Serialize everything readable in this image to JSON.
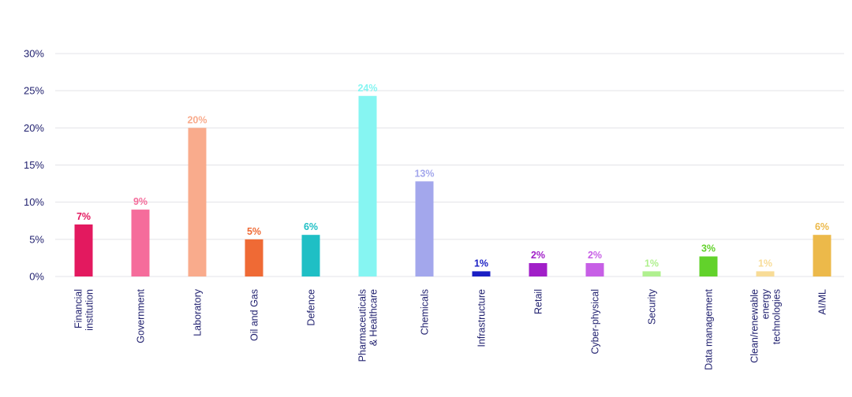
{
  "chart_data": {
    "type": "bar",
    "title": "",
    "xlabel": "",
    "ylabel": "",
    "ylim": [
      0,
      30
    ],
    "yticks": [
      0,
      5,
      10,
      15,
      20,
      25,
      30
    ],
    "ytick_labels": [
      "0%",
      "5%",
      "10%",
      "15%",
      "20%",
      "25%",
      "30%"
    ],
    "grid": true,
    "legend": "none",
    "categories": [
      {
        "lines": [
          "Financial",
          "institution"
        ],
        "value": 7,
        "label": "7%",
        "color": "#e3195f"
      },
      {
        "lines": [
          "Government"
        ],
        "value": 9,
        "label": "9%",
        "color": "#f56c9b"
      },
      {
        "lines": [
          "Laboratory"
        ],
        "value": 20,
        "label": "20%",
        "color": "#f9ab8c"
      },
      {
        "lines": [
          "Oil and Gas"
        ],
        "value": 5,
        "label": "5%",
        "color": "#ef6a35"
      },
      {
        "lines": [
          "Defence"
        ],
        "value": 5.6,
        "label": "6%",
        "color": "#1fbfc5"
      },
      {
        "lines": [
          "Pharmaceuticals",
          "& Healthcare"
        ],
        "value": 24.3,
        "label": "24%",
        "color": "#86f5f2"
      },
      {
        "lines": [
          "Chemicals"
        ],
        "value": 12.8,
        "label": "13%",
        "color": "#a3a7ec"
      },
      {
        "lines": [
          "Infrastructure"
        ],
        "value": 0.7,
        "label": "1%",
        "color": "#1a1fc4"
      },
      {
        "lines": [
          "Retail"
        ],
        "value": 1.8,
        "label": "2%",
        "color": "#a11fc8"
      },
      {
        "lines": [
          "Cyber-physical"
        ],
        "value": 1.8,
        "label": "2%",
        "color": "#c75fe6"
      },
      {
        "lines": [
          "Security"
        ],
        "value": 0.7,
        "label": "1%",
        "color": "#b0f08f"
      },
      {
        "lines": [
          "Data management"
        ],
        "value": 2.7,
        "label": "3%",
        "color": "#62d22b"
      },
      {
        "lines": [
          "Clean/renewable",
          "energy",
          "technologies"
        ],
        "value": 0.7,
        "label": "1%",
        "color": "#f8dc97"
      },
      {
        "lines": [
          "AI/ML"
        ],
        "value": 5.6,
        "label": "6%",
        "color": "#ecb94a"
      }
    ],
    "colors": {
      "axis_text": "#1f1f6e",
      "grid": "#e3e3e8"
    }
  }
}
